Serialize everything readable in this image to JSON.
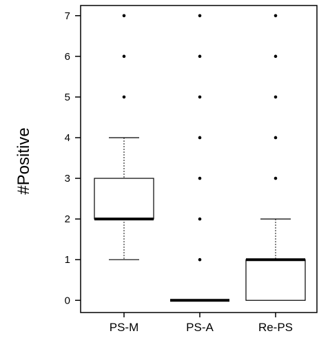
{
  "chart_data": {
    "type": "box",
    "ylabel": "#Positive",
    "ylim": [
      -0.3,
      7.25
    ],
    "yticks": [
      0,
      1,
      2,
      3,
      4,
      5,
      6,
      7
    ],
    "categories": [
      "PS-M",
      "PS-A",
      "Re-PS"
    ],
    "boxes": [
      {
        "category": "PS-M",
        "whisker_low": 1,
        "q1": 2,
        "median": 2,
        "q3": 3,
        "whisker_high": 4,
        "outliers": [
          5,
          6,
          7
        ]
      },
      {
        "category": "PS-A",
        "whisker_low": 0,
        "q1": 0,
        "median": 0,
        "q3": 0,
        "whisker_high": 0,
        "outliers": [
          1,
          2,
          3,
          4,
          5,
          6,
          7
        ]
      },
      {
        "category": "Re-PS",
        "whisker_low": 0,
        "q1": 0,
        "median": 1,
        "q3": 1,
        "whisker_high": 2,
        "outliers": [
          3,
          4,
          5,
          6,
          7
        ]
      }
    ]
  }
}
